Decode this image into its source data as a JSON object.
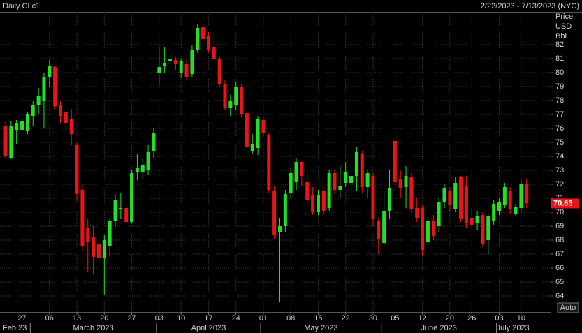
{
  "chart_data": {
    "type": "candlestick",
    "title": "Daily CLc1",
    "subtitle": "2/22/2023 - 7/13/2023 (NYC)",
    "y_label": [
      "Price",
      "USD",
      "Bbl"
    ],
    "button": "Auto",
    "up_color": "#22e022",
    "down_color": "#e8141a",
    "grid": true,
    "ylim": [
      62.85,
      84.35
    ],
    "yticks": [
      64,
      65,
      66,
      67,
      68,
      69,
      70,
      71,
      72,
      73,
      74,
      75,
      76,
      77,
      78,
      79,
      80,
      81,
      82
    ],
    "x": [
      "2023-02-22",
      "2023-02-23",
      "2023-02-24",
      "2023-02-27",
      "2023-02-28",
      "2023-03-01",
      "2023-03-02",
      "2023-03-03",
      "2023-03-06",
      "2023-03-07",
      "2023-03-08",
      "2023-03-09",
      "2023-03-10",
      "2023-03-13",
      "2023-03-14",
      "2023-03-15",
      "2023-03-16",
      "2023-03-17",
      "2023-03-20",
      "2023-03-21",
      "2023-03-22",
      "2023-03-23",
      "2023-03-24",
      "2023-03-27",
      "2023-03-28",
      "2023-03-29",
      "2023-03-30",
      "2023-03-31",
      "2023-04-03",
      "2023-04-04",
      "2023-04-05",
      "2023-04-06",
      "2023-04-10",
      "2023-04-11",
      "2023-04-12",
      "2023-04-13",
      "2023-04-14",
      "2023-04-17",
      "2023-04-18",
      "2023-04-19",
      "2023-04-20",
      "2023-04-21",
      "2023-04-24",
      "2023-04-25",
      "2023-04-26",
      "2023-04-27",
      "2023-04-28",
      "2023-05-01",
      "2023-05-02",
      "2023-05-03",
      "2023-05-04",
      "2023-05-05",
      "2023-05-08",
      "2023-05-09",
      "2023-05-10",
      "2023-05-11",
      "2023-05-12",
      "2023-05-15",
      "2023-05-16",
      "2023-05-17",
      "2023-05-18",
      "2023-05-19",
      "2023-05-22",
      "2023-05-23",
      "2023-05-24",
      "2023-05-25",
      "2023-05-26",
      "2023-05-30",
      "2023-05-31",
      "2023-06-01",
      "2023-06-02",
      "2023-06-05",
      "2023-06-06",
      "2023-06-07",
      "2023-06-08",
      "2023-06-09",
      "2023-06-12",
      "2023-06-13",
      "2023-06-14",
      "2023-06-15",
      "2023-06-16",
      "2023-06-20",
      "2023-06-21",
      "2023-06-22",
      "2023-06-23",
      "2023-06-26",
      "2023-06-27",
      "2023-06-28",
      "2023-06-29",
      "2023-06-30",
      "2023-07-03",
      "2023-07-05",
      "2023-07-06",
      "2023-07-07",
      "2023-07-10",
      "2023-07-11"
    ],
    "ohlc": [
      [
        76.2,
        76.5,
        73.9,
        74.0
      ],
      [
        73.9,
        76.5,
        73.8,
        76.2
      ],
      [
        75.9,
        76.6,
        74.9,
        76.4
      ],
      [
        75.9,
        77.0,
        75.5,
        76.5
      ],
      [
        75.8,
        77.2,
        75.6,
        77.0
      ],
      [
        76.9,
        78.0,
        76.2,
        77.7
      ],
      [
        77.7,
        78.9,
        77.0,
        78.3
      ],
      [
        78.0,
        80.0,
        76.0,
        79.7
      ],
      [
        79.7,
        80.9,
        79.0,
        80.5
      ],
      [
        80.4,
        80.5,
        77.4,
        77.6
      ],
      [
        77.7,
        78.0,
        76.4,
        76.9
      ],
      [
        77.2,
        77.5,
        75.7,
        76.4
      ],
      [
        76.7,
        77.4,
        74.8,
        75.6
      ],
      [
        74.8,
        75.0,
        70.8,
        71.3
      ],
      [
        71.6,
        72.0,
        67.2,
        67.6
      ],
      [
        68.9,
        69.5,
        65.7,
        67.9
      ],
      [
        68.2,
        69.0,
        65.6,
        66.8
      ],
      [
        67.7,
        68.2,
        66.4,
        66.7
      ],
      [
        66.7,
        68.4,
        64.1,
        68.0
      ],
      [
        67.6,
        69.6,
        66.8,
        69.4
      ],
      [
        69.4,
        71.3,
        69.0,
        70.9
      ],
      [
        70.3,
        71.4,
        69.5,
        70.3
      ],
      [
        70.3,
        70.6,
        69.2,
        69.3
      ],
      [
        69.3,
        73.0,
        69.2,
        72.8
      ],
      [
        72.9,
        74.2,
        72.3,
        73.2
      ],
      [
        72.9,
        73.9,
        72.4,
        73.4
      ],
      [
        73.0,
        74.8,
        72.7,
        74.3
      ],
      [
        74.4,
        76.0,
        73.9,
        75.7
      ],
      [
        80.0,
        81.8,
        79.1,
        80.4
      ],
      [
        80.5,
        81.8,
        80.0,
        80.7
      ],
      [
        80.8,
        81.2,
        80.3,
        81.0
      ],
      [
        80.9,
        81.1,
        80.2,
        80.6
      ],
      [
        80.0,
        81.0,
        79.6,
        80.8
      ],
      [
        80.6,
        81.0,
        79.5,
        79.7
      ],
      [
        79.9,
        82.0,
        79.7,
        81.6
      ],
      [
        81.6,
        83.5,
        81.4,
        83.2
      ],
      [
        83.3,
        83.5,
        82.0,
        82.4
      ],
      [
        82.6,
        82.9,
        81.4,
        81.6
      ],
      [
        81.8,
        82.9,
        80.9,
        81.0
      ],
      [
        81.0,
        81.2,
        79.0,
        79.2
      ],
      [
        79.2,
        79.5,
        77.3,
        77.5
      ],
      [
        77.5,
        78.4,
        76.9,
        78.0
      ],
      [
        77.7,
        79.3,
        77.3,
        79.0
      ],
      [
        79.0,
        79.2,
        76.8,
        77.0
      ],
      [
        77.1,
        77.3,
        74.5,
        74.7
      ],
      [
        74.4,
        75.6,
        74.2,
        74.9
      ],
      [
        74.6,
        76.9,
        74.1,
        76.7
      ],
      [
        76.6,
        76.8,
        75.4,
        75.7
      ],
      [
        75.5,
        75.7,
        71.4,
        71.6
      ],
      [
        71.5,
        71.9,
        68.1,
        68.4
      ],
      [
        68.6,
        69.6,
        63.6,
        69.0
      ],
      [
        69.0,
        71.6,
        68.6,
        71.3
      ],
      [
        71.4,
        73.2,
        71.0,
        72.8
      ],
      [
        72.2,
        73.9,
        71.6,
        73.6
      ],
      [
        73.6,
        73.7,
        71.9,
        72.6
      ],
      [
        72.2,
        72.8,
        70.5,
        70.9
      ],
      [
        71.2,
        71.8,
        69.8,
        70.0
      ],
      [
        70.0,
        71.6,
        69.8,
        71.2
      ],
      [
        71.5,
        71.6,
        69.9,
        70.1
      ],
      [
        70.3,
        73.0,
        70.1,
        72.8
      ],
      [
        72.8,
        73.1,
        71.3,
        71.6
      ],
      [
        71.6,
        73.3,
        71.0,
        71.9
      ],
      [
        72.1,
        73.6,
        71.8,
        72.9
      ],
      [
        72.1,
        73.2,
        71.2,
        72.6
      ],
      [
        72.6,
        74.7,
        71.5,
        74.3
      ],
      [
        74.2,
        74.4,
        71.4,
        71.8
      ],
      [
        71.8,
        73.0,
        71.0,
        72.8
      ],
      [
        72.6,
        72.8,
        69.0,
        69.5
      ],
      [
        69.4,
        69.6,
        67.0,
        68.1
      ],
      [
        67.8,
        71.5,
        67.6,
        70.1
      ],
      [
        70.1,
        73.0,
        69.5,
        71.7
      ],
      [
        75.1,
        75.1,
        71.5,
        72.2
      ],
      [
        72.4,
        73.0,
        71.0,
        71.7
      ],
      [
        71.8,
        73.3,
        70.3,
        72.6
      ],
      [
        72.5,
        72.8,
        70.0,
        70.2
      ],
      [
        70.3,
        71.0,
        69.3,
        69.6
      ],
      [
        70.3,
        70.5,
        66.9,
        67.3
      ],
      [
        67.9,
        69.8,
        67.6,
        69.4
      ],
      [
        69.4,
        69.8,
        68.0,
        68.3
      ],
      [
        69.0,
        71.0,
        68.6,
        70.7
      ],
      [
        70.7,
        72.0,
        70.3,
        71.7
      ],
      [
        71.5,
        71.8,
        70.0,
        70.5
      ],
      [
        70.2,
        72.5,
        70.0,
        72.1
      ],
      [
        72.5,
        72.6,
        69.3,
        69.5
      ],
      [
        71.9,
        72.6,
        68.9,
        69.2
      ],
      [
        69.6,
        70.3,
        68.8,
        69.1
      ],
      [
        69.2,
        70.1,
        68.7,
        69.7
      ],
      [
        69.8,
        70.0,
        67.5,
        67.7
      ],
      [
        68.0,
        69.9,
        67.0,
        69.7
      ],
      [
        69.4,
        70.9,
        69.1,
        70.6
      ],
      [
        70.1,
        71.0,
        69.8,
        70.7
      ],
      [
        70.5,
        72.1,
        70.3,
        71.8
      ],
      [
        71.5,
        71.8,
        69.9,
        70.2
      ],
      [
        69.9,
        70.6,
        69.7,
        70.4
      ],
      [
        70.3,
        72.3,
        70.0,
        72.0
      ],
      [
        72.0,
        72.4,
        70.3,
        70.63
      ]
    ],
    "xticks": [
      {
        "value": "2023-02-27",
        "label": "27"
      },
      {
        "value": "2023-03-06",
        "label": "06"
      },
      {
        "value": "2023-03-13",
        "label": "13"
      },
      {
        "value": "2023-03-20",
        "label": "20"
      },
      {
        "value": "2023-03-27",
        "label": "27"
      },
      {
        "value": "2023-04-03",
        "label": "03"
      },
      {
        "value": "2023-04-10",
        "label": "10"
      },
      {
        "value": "2023-04-17",
        "label": "17"
      },
      {
        "value": "2023-04-24",
        "label": "24"
      },
      {
        "value": "2023-05-01",
        "label": "01"
      },
      {
        "value": "2023-05-08",
        "label": "08"
      },
      {
        "value": "2023-05-15",
        "label": "15"
      },
      {
        "value": "2023-05-22",
        "label": "22"
      },
      {
        "value": "2023-05-30",
        "label": "30"
      },
      {
        "value": "2023-06-05",
        "label": "05"
      },
      {
        "value": "2023-06-12",
        "label": "12"
      },
      {
        "value": "2023-06-20",
        "label": "20"
      },
      {
        "value": "2023-06-26",
        "label": "26"
      },
      {
        "value": "2023-07-03",
        "label": "03"
      },
      {
        "value": "2023-07-10",
        "label": "10"
      }
    ],
    "months": [
      {
        "value": "2023-02-22",
        "label": "Feb 23"
      },
      {
        "value": "2023-03-01",
        "label": "March 2023"
      },
      {
        "value": "2023-04-03",
        "label": "April 2023"
      },
      {
        "value": "2023-05-01",
        "label": "May 2023"
      },
      {
        "value": "2023-06-01",
        "label": "June 2023"
      },
      {
        "value": "2023-07-03",
        "label": "July 2023"
      }
    ]
  }
}
